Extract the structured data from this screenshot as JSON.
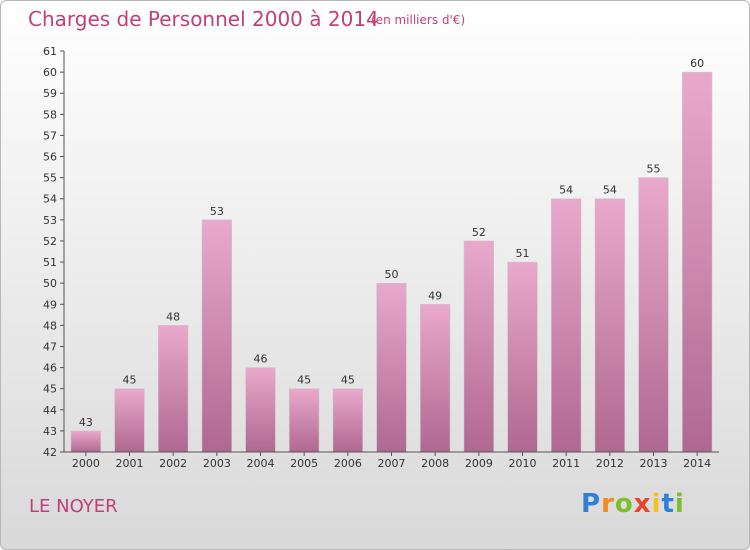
{
  "header": {
    "title": "Charges de Personnel 2000 à 2014",
    "subtitle": "(en milliers d'€)"
  },
  "footer": {
    "commune": "LE NOYER",
    "logo_letters": [
      "P",
      "r",
      "o",
      "x",
      "i",
      "t",
      "i"
    ],
    "logo_colors": [
      "#2f7fd6",
      "#f28a1e",
      "#7bbf2a",
      "#e8452c",
      "#f2c21e",
      "#2f7fd6",
      "#7bbf2a"
    ]
  },
  "chart_data": {
    "type": "bar",
    "title": "Charges de Personnel 2000 à 2014",
    "categories": [
      "2000",
      "2001",
      "2002",
      "2003",
      "2004",
      "2005",
      "2006",
      "2007",
      "2008",
      "2009",
      "2010",
      "2011",
      "2012",
      "2013",
      "2014"
    ],
    "values": [
      43,
      45,
      48,
      53,
      46,
      45,
      45,
      50,
      49,
      52,
      51,
      54,
      54,
      55,
      60
    ],
    "ylim": [
      42,
      61
    ],
    "yticks": [
      42,
      43,
      44,
      45,
      46,
      47,
      48,
      49,
      50,
      51,
      52,
      53,
      54,
      55,
      56,
      57,
      58,
      59,
      60,
      61
    ],
    "grid": false,
    "bar_color": "#d98bb5"
  }
}
